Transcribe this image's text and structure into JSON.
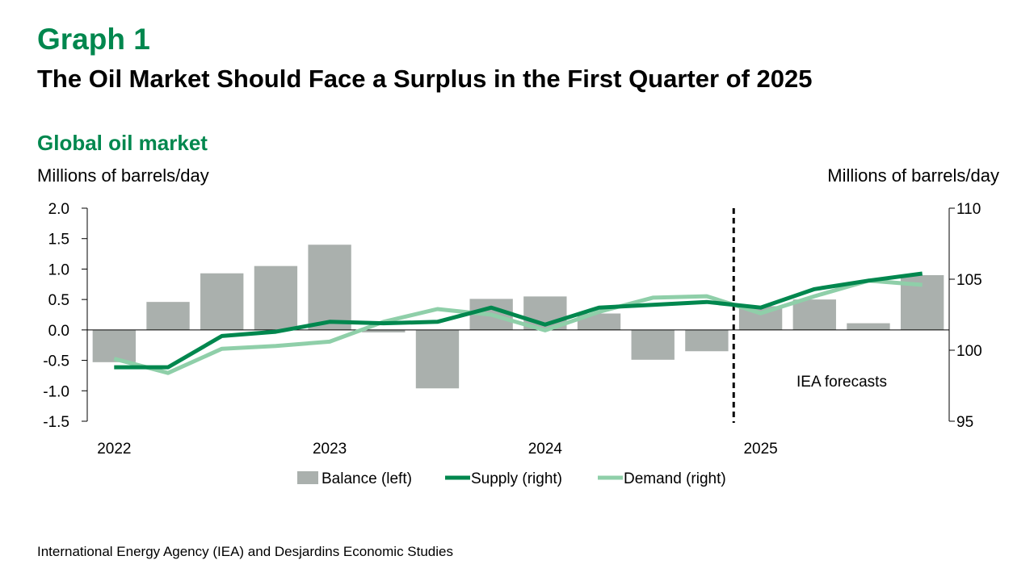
{
  "header": {
    "graph_number": "Graph 1",
    "title": "The Oil Market Should Face a Surplus in the First Quarter of 2025",
    "subtitle": "Global oil market"
  },
  "chart_data": {
    "type": "bar",
    "left_axis_label": "Millions of barrels/day",
    "right_axis_label": "Millions of barrels/day",
    "x_labels": [
      "2022",
      "2023",
      "2024",
      "2025"
    ],
    "quarters": [
      "2022Q1",
      "2022Q2",
      "2022Q3",
      "2022Q4",
      "2023Q1",
      "2023Q2",
      "2023Q3",
      "2023Q4",
      "2024Q1",
      "2024Q2",
      "2024Q3",
      "2024Q4",
      "2025Q1",
      "2025Q2",
      "2025Q3",
      "2025Q4"
    ],
    "ylim_left": [
      -1.5,
      2.0
    ],
    "yticks_left": [
      "-1.5",
      "-1.0",
      "-0.5",
      "0.0",
      "0.5",
      "1.0",
      "1.5",
      "2.0"
    ],
    "ylim_right": [
      95,
      110
    ],
    "yticks_right": [
      "95",
      "100",
      "105",
      "110"
    ],
    "forecast_start_index": 12,
    "forecast_label": "IEA forecasts",
    "series": [
      {
        "name": "Balance (left)",
        "type": "bar",
        "axis": "left",
        "color": "#aab0ad",
        "values": [
          -0.53,
          0.46,
          0.93,
          1.05,
          1.4,
          -0.04,
          -0.96,
          0.51,
          0.55,
          0.27,
          -0.49,
          -0.35,
          0.39,
          0.5,
          0.11,
          0.9
        ]
      },
      {
        "name": "Supply (right)",
        "type": "line",
        "axis": "right",
        "color": "#00874e",
        "values": [
          98.8,
          98.8,
          101.0,
          101.3,
          102.0,
          101.9,
          102.0,
          103.0,
          101.8,
          103.0,
          103.2,
          103.4,
          103.0,
          104.3,
          104.9,
          105.4
        ]
      },
      {
        "name": "Demand (right)",
        "type": "line",
        "axis": "right",
        "color": "#8fcfa9",
        "values": [
          99.4,
          98.4,
          100.1,
          100.3,
          100.6,
          102.0,
          102.9,
          102.5,
          101.4,
          102.7,
          103.7,
          103.8,
          102.6,
          103.8,
          104.9,
          104.6
        ]
      }
    ],
    "grid": false,
    "legend_position": "bottom"
  },
  "source": "International Energy Agency (IEA) and Desjardins Economic Studies"
}
